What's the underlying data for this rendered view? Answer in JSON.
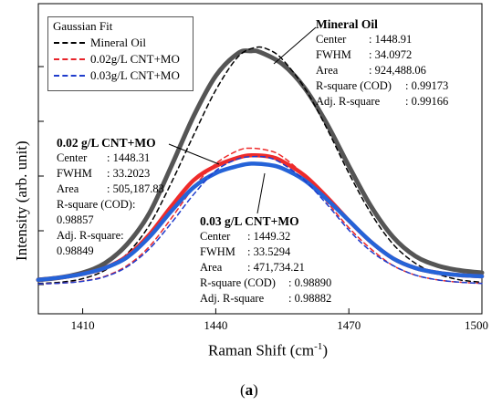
{
  "chart_data": {
    "type": "line",
    "xlabel": "Raman Shift (cm",
    "xlabel_sup": "-1",
    "xlabel_end": ")",
    "ylabel": "Intensity (arb. unit)",
    "xlim": [
      1400,
      1500
    ],
    "ylim": [
      0,
      1
    ],
    "xticks": [
      1410,
      1440,
      1470,
      1500
    ],
    "yticks_shown_as_marks_only": true,
    "grid": false,
    "legend_placement": "top-left",
    "legend_title": "Gaussian Fit",
    "legend": [
      {
        "label": "Mineral Oil",
        "color": "#000000",
        "style": "dashed"
      },
      {
        "label": "0.02g/L CNT+MO",
        "color": "#e8232a",
        "style": "dashed"
      },
      {
        "label": "0.03g/L CNT+MO",
        "color": "#1f3ccc",
        "style": "dashed"
      }
    ],
    "series": [
      {
        "key": "mo_measured",
        "color": "#555555",
        "width": 5,
        "x": [
          1400,
          1405,
          1410,
          1415,
          1420,
          1425,
          1430,
          1435,
          1440,
          1445,
          1448,
          1450,
          1455,
          1460,
          1465,
          1470,
          1475,
          1480,
          1485,
          1490,
          1495,
          1500
        ],
        "y": [
          0.02,
          0.03,
          0.05,
          0.09,
          0.17,
          0.3,
          0.5,
          0.71,
          0.88,
          0.975,
          0.985,
          0.98,
          0.93,
          0.83,
          0.68,
          0.5,
          0.33,
          0.2,
          0.12,
          0.08,
          0.06,
          0.05
        ]
      },
      {
        "key": "mo_fit",
        "color": "#000000",
        "dash": "5,4",
        "width": 1.5,
        "x": [
          1400,
          1405,
          1410,
          1415,
          1420,
          1425,
          1430,
          1435,
          1440,
          1445,
          1449,
          1452,
          1455,
          1460,
          1465,
          1470,
          1475,
          1480,
          1485,
          1490,
          1495,
          1500
        ],
        "y": [
          0.005,
          0.01,
          0.025,
          0.06,
          0.13,
          0.25,
          0.43,
          0.63,
          0.82,
          0.96,
          1.0,
          0.99,
          0.95,
          0.83,
          0.66,
          0.47,
          0.3,
          0.17,
          0.09,
          0.045,
          0.02,
          0.01
        ]
      },
      {
        "key": "cnt02_measured",
        "color": "#ee2b2b",
        "width": 4.5,
        "x": [
          1400,
          1405,
          1410,
          1415,
          1420,
          1425,
          1430,
          1435,
          1440,
          1445,
          1448,
          1452,
          1455,
          1460,
          1465,
          1470,
          1475,
          1480,
          1485,
          1490,
          1495,
          1500
        ],
        "y": [
          0.02,
          0.03,
          0.045,
          0.07,
          0.12,
          0.21,
          0.33,
          0.44,
          0.5,
          0.535,
          0.545,
          0.54,
          0.52,
          0.46,
          0.37,
          0.27,
          0.18,
          0.11,
          0.07,
          0.05,
          0.04,
          0.035
        ]
      },
      {
        "key": "cnt02_fit",
        "color": "#ee2b2b",
        "dash": "5,4",
        "width": 1.5,
        "x": [
          1400,
          1405,
          1410,
          1415,
          1420,
          1425,
          1430,
          1435,
          1440,
          1445,
          1448,
          1452,
          1455,
          1460,
          1465,
          1470,
          1475,
          1480,
          1485,
          1490,
          1495,
          1500
        ],
        "y": [
          0.003,
          0.006,
          0.015,
          0.035,
          0.08,
          0.16,
          0.28,
          0.41,
          0.51,
          0.565,
          0.575,
          0.565,
          0.54,
          0.46,
          0.35,
          0.24,
          0.15,
          0.08,
          0.04,
          0.02,
          0.01,
          0.005
        ]
      },
      {
        "key": "cnt03_measured",
        "color": "#2563d8",
        "width": 4.5,
        "x": [
          1400,
          1405,
          1410,
          1415,
          1420,
          1425,
          1430,
          1435,
          1440,
          1445,
          1448,
          1452,
          1455,
          1460,
          1465,
          1470,
          1475,
          1480,
          1485,
          1490,
          1495,
          1500
        ],
        "y": [
          0.02,
          0.03,
          0.045,
          0.07,
          0.115,
          0.2,
          0.31,
          0.41,
          0.47,
          0.5,
          0.51,
          0.505,
          0.49,
          0.44,
          0.36,
          0.27,
          0.18,
          0.11,
          0.07,
          0.05,
          0.04,
          0.035
        ]
      },
      {
        "key": "cnt03_fit",
        "color": "#1f3ccc",
        "dash": "5,4",
        "width": 1.5,
        "x": [
          1400,
          1405,
          1410,
          1415,
          1420,
          1425,
          1430,
          1435,
          1440,
          1445,
          1449,
          1452,
          1455,
          1460,
          1465,
          1470,
          1475,
          1480,
          1485,
          1490,
          1495,
          1500
        ],
        "y": [
          0.003,
          0.006,
          0.014,
          0.033,
          0.075,
          0.15,
          0.26,
          0.38,
          0.48,
          0.53,
          0.54,
          0.535,
          0.51,
          0.44,
          0.34,
          0.23,
          0.14,
          0.08,
          0.04,
          0.02,
          0.01,
          0.005
        ]
      }
    ],
    "annotations": [
      {
        "key": "mo",
        "title": "Mineral Oil",
        "rows": [
          {
            "k": "Center",
            "v": ": 1448.91"
          },
          {
            "k": "FWHM",
            "v": ": 34.0972"
          },
          {
            "k": "Area",
            "v": ": 924,488.06"
          },
          {
            "k": "R-square (COD)",
            "v": ": 0.99173"
          },
          {
            "k": "Adj. R-square",
            "v": ": 0.99166"
          }
        ]
      },
      {
        "key": "cnt02",
        "title": "0.02 g/L CNT+MO",
        "rows": [
          {
            "k": "Center",
            "v": ": 1448.31"
          },
          {
            "k": "FWHM",
            "v": ": 33.2023"
          },
          {
            "k": "Area",
            "v": ": 505,187.83"
          },
          {
            "k": "R-square (COD):",
            "v": ""
          },
          {
            "k": "0.98857",
            "v": ""
          },
          {
            "k": "Adj. R-square:",
            "v": ""
          },
          {
            "k": "0.98849",
            "v": ""
          }
        ]
      },
      {
        "key": "cnt03",
        "title": "0.03 g/L CNT+MO",
        "rows": [
          {
            "k": "Center",
            "v": ": 1449.32"
          },
          {
            "k": "FWHM",
            "v": ": 33.5294"
          },
          {
            "k": "Area",
            "v": ": 471,734.21"
          },
          {
            "k": "R-square (COD)",
            "v": ": 0.98890"
          },
          {
            "k": "Adj. R-square",
            "v": ": 0.98882"
          }
        ]
      }
    ]
  },
  "panel_label": "(a)"
}
